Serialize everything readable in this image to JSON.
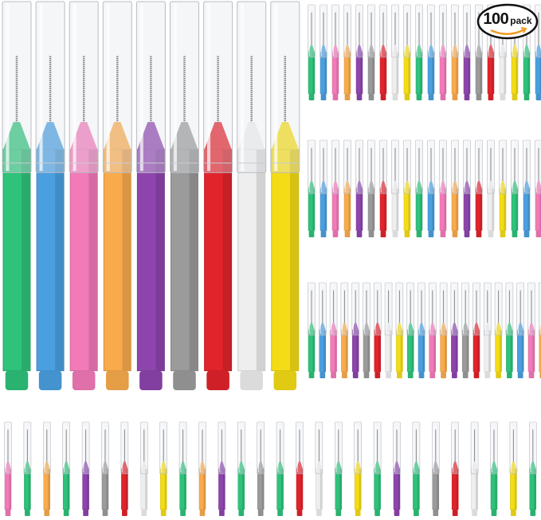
{
  "badge": {
    "count": "100",
    "unit": "pack",
    "arrow_color": "#f39a1e"
  },
  "brush_colors": {
    "green": "#2ec27a",
    "blue": "#4a9fe0",
    "pink": "#f27ab8",
    "orange": "#f9ab4c",
    "purple": "#8d45ad",
    "gray": "#9b9b9b",
    "red": "#e1232b",
    "white": "#eeeeee",
    "yellow": "#f4dc16"
  },
  "large_brushes": [
    "green",
    "blue",
    "pink",
    "orange",
    "purple",
    "gray",
    "red",
    "white",
    "yellow"
  ],
  "small_rows": [
    [
      "green",
      "blue",
      "pink",
      "orange",
      "purple",
      "gray",
      "red",
      "white",
      "yellow",
      "green",
      "blue",
      "pink",
      "orange",
      "purple",
      "gray",
      "red",
      "white",
      "yellow",
      "green",
      "blue"
    ],
    [
      "green",
      "blue",
      "pink",
      "orange",
      "purple",
      "gray",
      "red",
      "white",
      "yellow",
      "green",
      "blue",
      "pink",
      "orange",
      "purple",
      "red",
      "white",
      "yellow",
      "green",
      "blue",
      "pink"
    ],
    [
      "green",
      "blue",
      "pink",
      "orange",
      "purple",
      "gray",
      "red",
      "white",
      "yellow",
      "green",
      "blue",
      "pink",
      "orange",
      "purple",
      "gray",
      "red",
      "white",
      "yellow",
      "green",
      "blue",
      "pink",
      "orange"
    ],
    [
      "pink",
      "green",
      "orange",
      "green",
      "purple",
      "gray",
      "red",
      "white",
      "yellow",
      "green",
      "orange",
      "purple",
      "green",
      "gray",
      "green",
      "red",
      "white",
      "green",
      "yellow",
      "green",
      "purple",
      "green",
      "gray",
      "red",
      "white",
      "green",
      "yellow",
      "green"
    ]
  ]
}
